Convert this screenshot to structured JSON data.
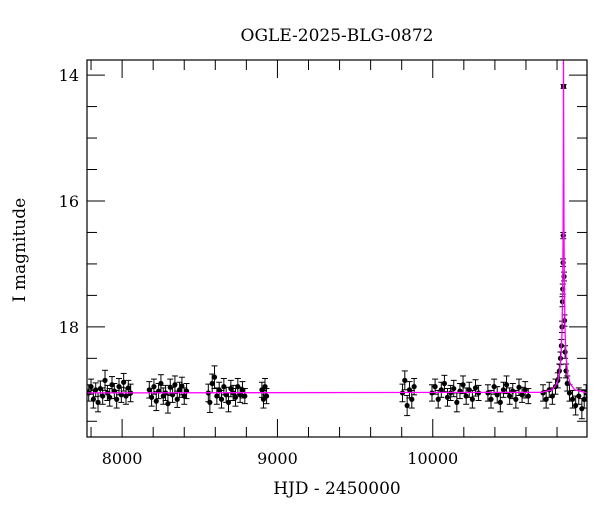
{
  "chart_data": {
    "type": "scatter",
    "title": "OGLE-2025-BLG-0872",
    "xlabel": "HJD - 2450000",
    "ylabel": "I magnitude",
    "xlim": [
      7774,
      10993
    ],
    "ylim": [
      19.75,
      13.76
    ],
    "y_inverted": true,
    "x_ticks": [
      8000,
      9000,
      10000
    ],
    "x_tick_labels": [
      "8000",
      "9000",
      "10000"
    ],
    "x_minor_step": 200,
    "y_ticks": [
      14,
      16,
      18
    ],
    "y_tick_labels": [
      "14",
      "16",
      "18"
    ],
    "y_minor_step": 0.5,
    "grid": false,
    "colors": {
      "points": "#000000",
      "model": "#ff00ff"
    },
    "points_format": [
      "hjd",
      "mag",
      "err"
    ],
    "points": [
      [
        7785,
        19.05,
        0.13
      ],
      [
        7800,
        18.95,
        0.12
      ],
      [
        7815,
        19.15,
        0.14
      ],
      [
        7830,
        19.0,
        0.11
      ],
      [
        7845,
        19.2,
        0.15
      ],
      [
        7860,
        18.98,
        0.12
      ],
      [
        7875,
        19.1,
        0.13
      ],
      [
        7890,
        18.85,
        0.16
      ],
      [
        7905,
        19.05,
        0.12
      ],
      [
        7920,
        19.12,
        0.14
      ],
      [
        7935,
        18.92,
        0.13
      ],
      [
        7950,
        19.02,
        0.12
      ],
      [
        7965,
        19.15,
        0.14
      ],
      [
        7980,
        18.95,
        0.13
      ],
      [
        7995,
        19.08,
        0.12
      ],
      [
        8010,
        18.88,
        0.14
      ],
      [
        8025,
        19.1,
        0.13
      ],
      [
        8040,
        18.97,
        0.12
      ],
      [
        8055,
        19.05,
        0.14
      ],
      [
        8175,
        19.0,
        0.13
      ],
      [
        8190,
        19.12,
        0.14
      ],
      [
        8205,
        18.95,
        0.12
      ],
      [
        8220,
        19.18,
        0.15
      ],
      [
        8235,
        19.02,
        0.12
      ],
      [
        8250,
        18.9,
        0.14
      ],
      [
        8265,
        19.1,
        0.13
      ],
      [
        8280,
        19.05,
        0.12
      ],
      [
        8295,
        19.22,
        0.15
      ],
      [
        8310,
        18.96,
        0.13
      ],
      [
        8325,
        19.08,
        0.12
      ],
      [
        8340,
        18.92,
        0.14
      ],
      [
        8355,
        19.15,
        0.13
      ],
      [
        8370,
        19.0,
        0.12
      ],
      [
        8385,
        18.94,
        0.14
      ],
      [
        8400,
        19.1,
        0.13
      ],
      [
        8415,
        19.02,
        0.12
      ],
      [
        8555,
        19.05,
        0.14
      ],
      [
        8565,
        19.2,
        0.16
      ],
      [
        8580,
        18.9,
        0.15
      ],
      [
        8595,
        18.8,
        0.18
      ],
      [
        8610,
        19.1,
        0.13
      ],
      [
        8625,
        19.0,
        0.12
      ],
      [
        8640,
        19.15,
        0.14
      ],
      [
        8655,
        18.95,
        0.13
      ],
      [
        8670,
        19.08,
        0.12
      ],
      [
        8685,
        19.2,
        0.15
      ],
      [
        8700,
        18.98,
        0.13
      ],
      [
        8715,
        19.05,
        0.12
      ],
      [
        8730,
        19.12,
        0.14
      ],
      [
        8745,
        18.95,
        0.13
      ],
      [
        8760,
        19.08,
        0.12
      ],
      [
        8775,
        19.0,
        0.13
      ],
      [
        8790,
        19.1,
        0.12
      ],
      [
        8900,
        19.0,
        0.12
      ],
      [
        8910,
        19.15,
        0.14
      ],
      [
        8920,
        18.95,
        0.13
      ],
      [
        8930,
        19.1,
        0.12
      ],
      [
        9805,
        19.05,
        0.14
      ],
      [
        9820,
        18.85,
        0.15
      ],
      [
        9835,
        19.25,
        0.16
      ],
      [
        9850,
        19.0,
        0.13
      ],
      [
        9865,
        19.15,
        0.14
      ],
      [
        9880,
        18.95,
        0.13
      ],
      [
        9995,
        19.05,
        0.13
      ],
      [
        10015,
        18.95,
        0.12
      ],
      [
        10035,
        19.15,
        0.14
      ],
      [
        10055,
        19.0,
        0.12
      ],
      [
        10075,
        18.9,
        0.13
      ],
      [
        10095,
        19.12,
        0.14
      ],
      [
        10115,
        19.05,
        0.12
      ],
      [
        10135,
        18.98,
        0.13
      ],
      [
        10155,
        19.2,
        0.15
      ],
      [
        10175,
        19.02,
        0.12
      ],
      [
        10195,
        18.92,
        0.14
      ],
      [
        10215,
        19.1,
        0.13
      ],
      [
        10235,
        19.0,
        0.12
      ],
      [
        10255,
        19.15,
        0.14
      ],
      [
        10275,
        18.97,
        0.13
      ],
      [
        10295,
        19.05,
        0.12
      ],
      [
        10355,
        19.05,
        0.13
      ],
      [
        10375,
        19.15,
        0.14
      ],
      [
        10395,
        18.95,
        0.12
      ],
      [
        10415,
        19.08,
        0.13
      ],
      [
        10435,
        19.2,
        0.15
      ],
      [
        10455,
        19.0,
        0.12
      ],
      [
        10475,
        18.92,
        0.14
      ],
      [
        10495,
        19.1,
        0.13
      ],
      [
        10515,
        19.02,
        0.12
      ],
      [
        10535,
        19.15,
        0.14
      ],
      [
        10555,
        18.96,
        0.13
      ],
      [
        10575,
        19.08,
        0.12
      ],
      [
        10595,
        19.0,
        0.13
      ],
      [
        10615,
        19.1,
        0.12
      ],
      [
        10710,
        19.05,
        0.13
      ],
      [
        10730,
        19.15,
        0.14
      ],
      [
        10750,
        19.0,
        0.12
      ],
      [
        10770,
        19.1,
        0.13
      ],
      [
        10790,
        18.95,
        0.12
      ],
      [
        10805,
        18.85,
        0.12
      ],
      [
        10815,
        18.7,
        0.11
      ],
      [
        10822,
        18.5,
        0.1
      ],
      [
        10828,
        18.3,
        0.1
      ],
      [
        10832,
        18.0,
        0.09
      ],
      [
        10835,
        17.6,
        0.08
      ],
      [
        10837,
        17.4,
        0.08
      ],
      [
        10839,
        16.98,
        0.06
      ],
      [
        10840,
        16.55,
        0.05
      ],
      [
        10842,
        14.18,
        0.03
      ],
      [
        10845,
        17.2,
        0.07
      ],
      [
        10848,
        17.9,
        0.09
      ],
      [
        10852,
        18.4,
        0.1
      ],
      [
        10858,
        18.7,
        0.11
      ],
      [
        10866,
        18.9,
        0.12
      ],
      [
        10880,
        19.05,
        0.13
      ],
      [
        10900,
        19.15,
        0.14
      ],
      [
        10920,
        19.25,
        0.15
      ],
      [
        10940,
        19.1,
        0.13
      ],
      [
        10960,
        19.3,
        0.16
      ],
      [
        10975,
        19.15,
        0.14
      ],
      [
        10988,
        19.05,
        0.13
      ]
    ],
    "model": {
      "x": [
        7774,
        10700,
        10770,
        10800,
        10815,
        10825,
        10832,
        10836,
        10839,
        10841,
        10842,
        10843,
        10845,
        10848,
        10852,
        10859,
        10869,
        10884,
        10914,
        10993
      ],
      "y": [
        19.05,
        19.04,
        19.0,
        18.9,
        18.75,
        18.5,
        18.1,
        17.5,
        16.5,
        15.0,
        13.7,
        15.0,
        16.5,
        17.5,
        18.1,
        18.5,
        18.75,
        18.9,
        19.0,
        19.05
      ]
    }
  }
}
